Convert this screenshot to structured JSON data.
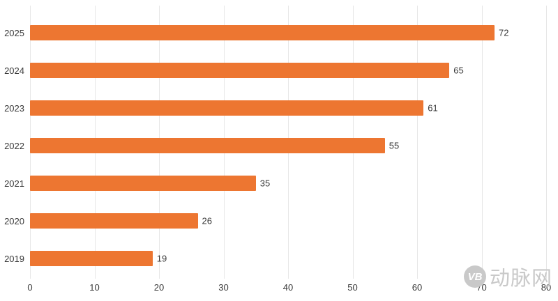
{
  "chart_data": {
    "type": "bar",
    "orientation": "horizontal",
    "title": "",
    "xlabel": "",
    "ylabel": "",
    "categories": [
      "2025",
      "2024",
      "2023",
      "2022",
      "2021",
      "2020",
      "2019"
    ],
    "values": [
      72,
      65,
      61,
      55,
      35,
      26,
      19
    ],
    "xlim": [
      0,
      80
    ],
    "x_ticks": [
      0,
      10,
      20,
      30,
      40,
      50,
      60,
      70,
      80
    ],
    "bar_color": "#ED7631",
    "grid": true,
    "legend": false
  },
  "watermark": {
    "logo": "VB",
    "text": "动脉网",
    "color": "#c9c9c9"
  }
}
